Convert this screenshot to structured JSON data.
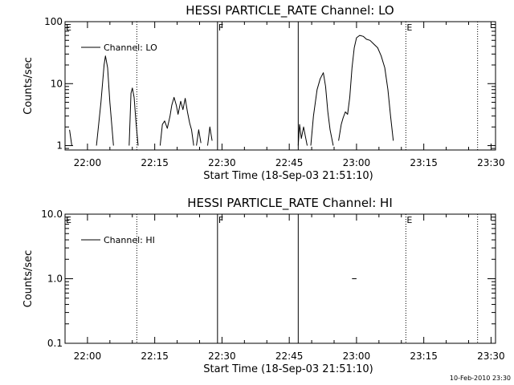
{
  "chart_data": [
    {
      "type": "line",
      "title": "HESSI PARTICLE_RATE Channel: LO",
      "xlabel": "Start Time (18-Sep-03 21:51:10)",
      "ylabel": "Counts/sec",
      "x_unit": "time (HH:MM, 18-Sep-03)",
      "xlim": [
        "21:55",
        "23:31"
      ],
      "y_scale": "log",
      "ylim": [
        0.85,
        100
      ],
      "x_ticks": [
        "22:00",
        "22:15",
        "22:30",
        "22:45",
        "23:00",
        "23:15",
        "23:30"
      ],
      "y_ticks": [
        "1",
        "10",
        "100"
      ],
      "legend": "top-left",
      "grid": false,
      "series": [
        {
          "name": "Channel: LO",
          "segments": [
            [
              [
                "21:56.0",
                1.8
              ],
              [
                "21:56.5",
                1
              ]
            ],
            [
              [
                "22:02.0",
                1
              ],
              [
                "22:03.0",
                5
              ],
              [
                "22:03.7",
                20
              ],
              [
                "22:04.0",
                28
              ],
              [
                "22:04.5",
                18
              ],
              [
                "22:05.0",
                5
              ],
              [
                "22:05.8",
                1
              ]
            ],
            [
              [
                "22:09.3",
                1
              ],
              [
                "22:09.7",
                7
              ],
              [
                "22:10.0",
                8.5
              ],
              [
                "22:10.4",
                6
              ],
              [
                "22:10.8",
                2.5
              ],
              [
                "22:11.3",
                1
              ]
            ],
            [
              [
                "22:16.2",
                1
              ],
              [
                "22:16.7",
                2.2
              ],
              [
                "22:17.2",
                2.5
              ],
              [
                "22:17.8",
                1.9
              ],
              [
                "22:18.4",
                3
              ],
              [
                "22:18.8",
                4.5
              ],
              [
                "22:19.3",
                6
              ],
              [
                "22:19.8",
                4.5
              ],
              [
                "22:20.2",
                3.2
              ],
              [
                "22:20.8",
                5.2
              ],
              [
                "22:21.3",
                3.8
              ],
              [
                "22:21.8",
                5.8
              ],
              [
                "22:22.3",
                3.5
              ],
              [
                "22:22.8",
                2.3
              ],
              [
                "22:23.2",
                1.8
              ],
              [
                "22:23.7",
                1
              ]
            ],
            [
              [
                "22:24.3",
                1
              ],
              [
                "22:24.8",
                1.8
              ],
              [
                "22:25.3",
                1.1
              ]
            ],
            [
              [
                "22:26.8",
                1
              ],
              [
                "22:27.3",
                2.0
              ],
              [
                "22:27.8",
                1.2
              ]
            ],
            [
              [
                "22:47.0",
                1
              ],
              [
                "22:47.3",
                2.2
              ],
              [
                "22:47.7",
                1.3
              ],
              [
                "22:48.2",
                2.0
              ],
              [
                "22:48.6",
                1.4
              ],
              [
                "22:49.0",
                1
              ]
            ],
            [
              [
                "22:49.8",
                1
              ],
              [
                "22:50.4",
                3
              ],
              [
                "22:51.2",
                8
              ],
              [
                "22:51.9",
                12
              ],
              [
                "22:52.6",
                15
              ],
              [
                "22:53.1",
                9
              ],
              [
                "22:53.6",
                3.5
              ],
              [
                "22:54.1",
                1.8
              ],
              [
                "22:54.8",
                1
              ]
            ],
            [
              [
                "22:56.0",
                1.2
              ],
              [
                "22:56.6",
                2.2
              ],
              [
                "22:57.0",
                2.8
              ],
              [
                "22:57.5",
                3.5
              ],
              [
                "22:58.0",
                3.2
              ],
              [
                "22:58.5",
                6
              ],
              [
                "22:59.0",
                18
              ],
              [
                "22:59.5",
                38
              ],
              [
                "23:00.0",
                55
              ],
              [
                "23:00.7",
                60
              ],
              [
                "23:01.5",
                58
              ],
              [
                "23:02.2",
                52
              ],
              [
                "23:03.0",
                50
              ],
              [
                "23:03.8",
                44
              ],
              [
                "23:04.7",
                38
              ],
              [
                "23:05.5",
                28
              ],
              [
                "23:06.3",
                18
              ],
              [
                "23:07.0",
                8
              ],
              [
                "23:07.6",
                3
              ],
              [
                "23:08.2",
                1.2
              ]
            ]
          ]
        }
      ],
      "annotations": [
        {
          "text": "E",
          "x": "21:55"
        },
        {
          "text": "F",
          "x": "22:29"
        },
        {
          "text": "E",
          "x": "23:11"
        }
      ],
      "vertical_lines": [
        {
          "x": "22:11",
          "style": "dotted"
        },
        {
          "x": "22:29",
          "style": "solid"
        },
        {
          "x": "22:47",
          "style": "solid"
        },
        {
          "x": "23:11",
          "style": "dotted"
        },
        {
          "x": "23:27",
          "style": "dotted"
        }
      ]
    },
    {
      "type": "line",
      "title": "HESSI PARTICLE_RATE Channel: HI",
      "xlabel": "Start Time (18-Sep-03 21:51:10)",
      "ylabel": "Counts/sec",
      "x_unit": "time (HH:MM, 18-Sep-03)",
      "xlim": [
        "21:55",
        "23:31"
      ],
      "y_scale": "log",
      "ylim": [
        0.1,
        10
      ],
      "x_ticks": [
        "22:00",
        "22:15",
        "22:30",
        "22:45",
        "23:00",
        "23:15",
        "23:30"
      ],
      "y_ticks": [
        "0.1",
        "1.0",
        "10.0"
      ],
      "legend": "top-left",
      "grid": false,
      "series": [
        {
          "name": "Channel: HI",
          "segments": [
            [
              [
                "22:59.0",
                1
              ],
              [
                "23:00.0",
                1
              ]
            ]
          ]
        }
      ],
      "annotations": [
        {
          "text": "E",
          "x": "21:55"
        },
        {
          "text": "F",
          "x": "22:29"
        },
        {
          "text": "E",
          "x": "23:11"
        }
      ],
      "vertical_lines": [
        {
          "x": "22:11",
          "style": "dotted"
        },
        {
          "x": "22:29",
          "style": "solid"
        },
        {
          "x": "22:47",
          "style": "solid"
        },
        {
          "x": "23:11",
          "style": "dotted"
        },
        {
          "x": "23:27",
          "style": "dotted"
        }
      ]
    }
  ],
  "footer": {
    "timestamp": "10-Feb-2010 23:30"
  }
}
